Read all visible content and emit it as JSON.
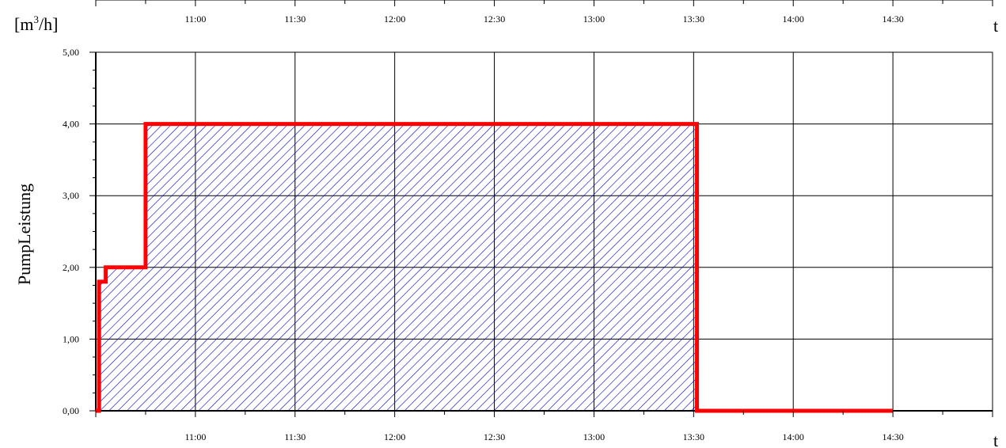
{
  "chart_data": {
    "type": "area",
    "ylabel": "PumpLeistung",
    "yunit_base": "[m",
    "yunit_sup": "3",
    "yunit_rest": "/h]",
    "xlabel": "t",
    "xlim": [
      "10:30",
      "15:00"
    ],
    "ylim": [
      0,
      5
    ],
    "xticks": [
      "11:00",
      "11:30",
      "12:00",
      "12:30",
      "13:00",
      "13:30",
      "14:00",
      "14:30"
    ],
    "yticks": [
      "0,00",
      "1,00",
      "2,00",
      "3,00",
      "4,00",
      "5,00"
    ],
    "grid": true,
    "series": [
      {
        "color": "#ff0000",
        "fill_hatch_color": "#0000cc",
        "points": [
          [
            "10:30",
            0.0
          ],
          [
            "10:31",
            0.0
          ],
          [
            "10:31",
            1.8
          ],
          [
            "10:33",
            1.8
          ],
          [
            "10:33",
            2.0
          ],
          [
            "10:45",
            2.0
          ],
          [
            "10:45",
            4.0
          ],
          [
            "13:31",
            4.0
          ],
          [
            "13:31",
            0.0
          ],
          [
            "14:30",
            0.0
          ]
        ]
      }
    ]
  }
}
